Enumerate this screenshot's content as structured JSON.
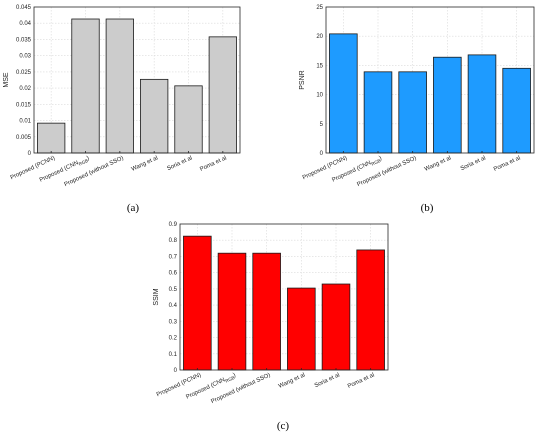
{
  "chart_data": [
    {
      "type": "bar",
      "panel_label": "(a)",
      "ylabel": "MSE",
      "ylim": [
        0,
        0.045
      ],
      "yticks": [
        "0",
        "0.005",
        "0.01",
        "0.015",
        "0.02",
        "0.025",
        "0.03",
        "0.035",
        "0.04",
        "0.045"
      ],
      "categories": [
        "Proposed (PCNN)",
        "Proposed (CNN_RGB)",
        "Proposed (without SSO)",
        "Wang et al",
        "Soria et al",
        "Poma et al"
      ],
      "values": [
        0.0092,
        0.0413,
        0.0413,
        0.0227,
        0.0207,
        0.0358
      ],
      "bar_color": "#cccccc",
      "grid": true
    },
    {
      "type": "bar",
      "panel_label": "(b)",
      "ylabel": "PSNR",
      "ylim": [
        0,
        25
      ],
      "yticks": [
        "0",
        "5",
        "10",
        "15",
        "20",
        "25"
      ],
      "categories": [
        "Proposed (PCNN)",
        "Proposed (CNN_RGB)",
        "Proposed (without SSO)",
        "Wang et al",
        "Soria et al",
        "Poma et al"
      ],
      "values": [
        20.4,
        13.9,
        13.9,
        16.4,
        16.8,
        14.5
      ],
      "bar_color": "#1e9bff",
      "grid": true
    },
    {
      "type": "bar",
      "panel_label": "(c)",
      "ylabel": "SSIM",
      "ylim": [
        0,
        0.9
      ],
      "yticks": [
        "0",
        "0.1",
        "0.2",
        "0.3",
        "0.4",
        "0.5",
        "0.6",
        "0.7",
        "0.8",
        "0.9"
      ],
      "categories": [
        "Proposed (PCNN)",
        "Proposed (CNN_RGB)",
        "Proposed (without SSO)",
        "Wang et al",
        "Soria et al",
        "Poma et al"
      ],
      "values": [
        0.825,
        0.72,
        0.72,
        0.505,
        0.53,
        0.74
      ],
      "bar_color": "#ff0000",
      "grid": true
    }
  ]
}
